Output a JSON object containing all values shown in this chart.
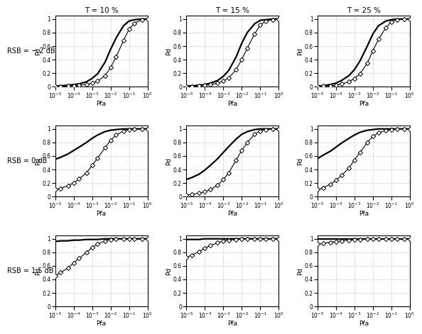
{
  "row_labels": [
    "RSB = − 2 dB",
    "RSB = 0 dB",
    "RSB = 1.5 dB"
  ],
  "col_labels": [
    "T = 10 %",
    "T = 15 %",
    "T = 25 %"
  ],
  "pfa": [
    1e-05,
    2e-05,
    5e-05,
    0.0001,
    0.0002,
    0.0005,
    0.001,
    0.002,
    0.005,
    0.01,
    0.02,
    0.05,
    0.1,
    0.2,
    0.5,
    1.0
  ],
  "proposed": {
    "row0_col0": [
      0.01,
      0.01,
      0.02,
      0.03,
      0.04,
      0.07,
      0.12,
      0.19,
      0.36,
      0.55,
      0.72,
      0.9,
      0.97,
      0.99,
      1.0,
      1.0
    ],
    "row0_col1": [
      0.01,
      0.01,
      0.02,
      0.03,
      0.05,
      0.09,
      0.15,
      0.24,
      0.44,
      0.64,
      0.8,
      0.93,
      0.98,
      0.99,
      1.0,
      1.0
    ],
    "row0_col2": [
      0.01,
      0.01,
      0.03,
      0.05,
      0.09,
      0.16,
      0.25,
      0.38,
      0.6,
      0.78,
      0.9,
      0.97,
      0.99,
      1.0,
      1.0,
      1.0
    ],
    "row1_col0": [
      0.55,
      0.58,
      0.63,
      0.68,
      0.73,
      0.8,
      0.86,
      0.91,
      0.96,
      0.98,
      0.99,
      1.0,
      1.0,
      1.0,
      1.0,
      1.0
    ],
    "row1_col1": [
      0.25,
      0.28,
      0.33,
      0.39,
      0.46,
      0.56,
      0.65,
      0.74,
      0.85,
      0.92,
      0.96,
      0.99,
      1.0,
      1.0,
      1.0,
      1.0
    ],
    "row1_col2": [
      0.56,
      0.61,
      0.67,
      0.73,
      0.79,
      0.86,
      0.91,
      0.95,
      0.98,
      0.99,
      1.0,
      1.0,
      1.0,
      1.0,
      1.0,
      1.0
    ],
    "row2_col0": [
      0.96,
      0.97,
      0.97,
      0.98,
      0.98,
      0.99,
      0.99,
      0.99,
      1.0,
      1.0,
      1.0,
      1.0,
      1.0,
      1.0,
      1.0,
      1.0
    ],
    "row2_col1": [
      0.99,
      0.99,
      0.99,
      1.0,
      1.0,
      1.0,
      1.0,
      1.0,
      1.0,
      1.0,
      1.0,
      1.0,
      1.0,
      1.0,
      1.0,
      1.0
    ],
    "row2_col2": [
      1.0,
      1.0,
      1.0,
      1.0,
      1.0,
      1.0,
      1.0,
      1.0,
      1.0,
      1.0,
      1.0,
      1.0,
      1.0,
      1.0,
      1.0,
      1.0
    ]
  },
  "energy": {
    "row0_col0": [
      0.0,
      0.0,
      0.01,
      0.01,
      0.02,
      0.03,
      0.05,
      0.08,
      0.16,
      0.28,
      0.44,
      0.68,
      0.85,
      0.94,
      0.99,
      1.0
    ],
    "row0_col1": [
      0.0,
      0.0,
      0.01,
      0.02,
      0.03,
      0.05,
      0.08,
      0.13,
      0.25,
      0.4,
      0.57,
      0.78,
      0.91,
      0.97,
      0.99,
      1.0
    ],
    "row0_col2": [
      0.0,
      0.01,
      0.01,
      0.02,
      0.04,
      0.07,
      0.12,
      0.19,
      0.35,
      0.53,
      0.7,
      0.87,
      0.96,
      0.99,
      1.0,
      1.0
    ],
    "row1_col0": [
      0.1,
      0.12,
      0.16,
      0.2,
      0.26,
      0.35,
      0.46,
      0.57,
      0.72,
      0.83,
      0.91,
      0.97,
      0.99,
      1.0,
      1.0,
      1.0
    ],
    "row1_col1": [
      0.02,
      0.03,
      0.05,
      0.07,
      0.1,
      0.17,
      0.25,
      0.35,
      0.54,
      0.68,
      0.8,
      0.92,
      0.97,
      0.99,
      1.0,
      1.0
    ],
    "row1_col2": [
      0.1,
      0.13,
      0.18,
      0.24,
      0.31,
      0.42,
      0.54,
      0.65,
      0.8,
      0.89,
      0.94,
      0.98,
      0.99,
      1.0,
      1.0,
      1.0
    ],
    "row2_col0": [
      0.45,
      0.5,
      0.57,
      0.64,
      0.71,
      0.8,
      0.87,
      0.92,
      0.97,
      0.99,
      1.0,
      1.0,
      1.0,
      1.0,
      1.0,
      1.0
    ],
    "row2_col1": [
      0.72,
      0.76,
      0.81,
      0.86,
      0.9,
      0.94,
      0.97,
      0.98,
      0.99,
      1.0,
      1.0,
      1.0,
      1.0,
      1.0,
      1.0,
      1.0
    ],
    "row2_col2": [
      0.92,
      0.93,
      0.95,
      0.96,
      0.97,
      0.98,
      0.99,
      0.99,
      1.0,
      1.0,
      1.0,
      1.0,
      1.0,
      1.0,
      1.0,
      1.0
    ]
  },
  "xlabel": "Pfa",
  "ylabel": "Pd",
  "xlim": [
    1e-05,
    1.0
  ],
  "ylim": [
    0,
    1.05
  ]
}
